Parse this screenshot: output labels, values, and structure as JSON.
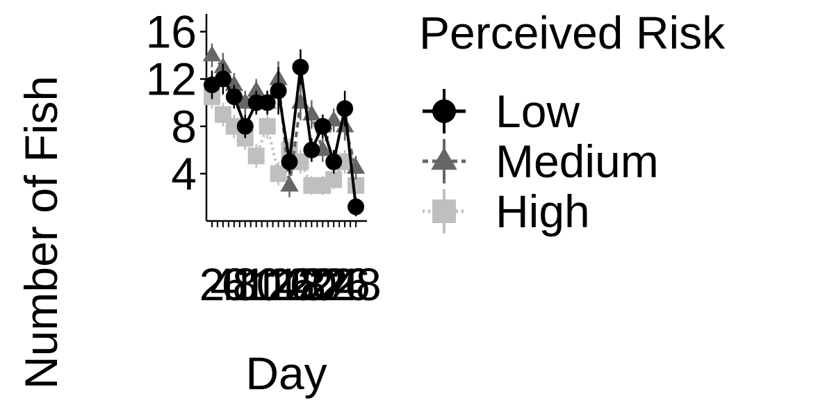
{
  "chart_data": {
    "type": "line",
    "xlabel": "Day",
    "ylabel": "Number of Fish",
    "legend_title": "Perceived Risk",
    "legend_position": "right",
    "grid": false,
    "xlim": [
      1,
      30
    ],
    "ylim": [
      0,
      17.5
    ],
    "yticks": [
      4,
      8,
      12,
      16
    ],
    "x": [
      2,
      4,
      6,
      8,
      10,
      12,
      14,
      16,
      18,
      20,
      22,
      24,
      26,
      28
    ],
    "xtick_labels": [
      "2",
      "4",
      "6",
      "8",
      "10",
      "12",
      "14",
      "16",
      "18",
      "20",
      "22",
      "24",
      "26",
      "28"
    ],
    "series": [
      {
        "name": "Low",
        "marker": "circle",
        "color": "#000000",
        "dash": "solid",
        "values": [
          11.5,
          12,
          10.5,
          8,
          10,
          10,
          11,
          5,
          13,
          6,
          8,
          5,
          9.5,
          1.2
        ],
        "err": [
          1.2,
          1.3,
          1.0,
          1.0,
          1.0,
          1.0,
          2.0,
          1.0,
          1.5,
          1.0,
          1.0,
          1.0,
          1.5,
          0.8
        ]
      },
      {
        "name": "Medium",
        "marker": "triangle",
        "color": "#666666",
        "dash": "8,6",
        "values": [
          14,
          13,
          11.5,
          10,
          11,
          10,
          12,
          3,
          10,
          9,
          6,
          8.5,
          8,
          4.5
        ],
        "err": [
          1.0,
          1.2,
          1.0,
          1.0,
          1.0,
          1.0,
          1.5,
          1.0,
          1.5,
          1.2,
          1.0,
          1.0,
          1.2,
          1.0
        ]
      },
      {
        "name": "High",
        "marker": "square",
        "color": "#bfbfbf",
        "dash": "3,5",
        "values": [
          10.5,
          9,
          8,
          7,
          5.5,
          8,
          4,
          6,
          5,
          3,
          3,
          3.5,
          5,
          3
        ],
        "err": [
          1.0,
          1.0,
          1.0,
          1.0,
          1.0,
          1.0,
          1.0,
          1.0,
          1.0,
          0.8,
          0.8,
          0.8,
          1.0,
          0.8
        ]
      }
    ]
  }
}
